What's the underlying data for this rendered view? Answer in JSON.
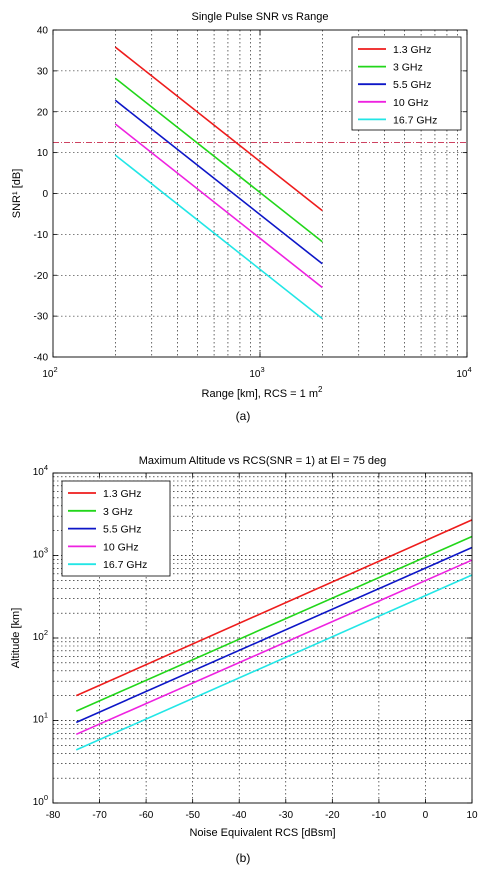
{
  "chart_data": [
    {
      "type": "line",
      "title": "Single Pulse SNR vs Range",
      "xlabel": "Range [km], RCS = 1 m",
      "xlabel_sup": "2",
      "ylabel": "SNR¹ [dB]",
      "caption": "(a)",
      "xscale": "log",
      "xlim": [
        100,
        10000
      ],
      "ylim": [
        -40,
        40
      ],
      "x_ticks": [
        100,
        1000,
        10000
      ],
      "x_tick_labels": [
        {
          "base": "10",
          "exp": "2"
        },
        {
          "base": "10",
          "exp": "3"
        },
        {
          "base": "10",
          "exp": "4"
        }
      ],
      "y_ticks": [
        -40,
        -30,
        -20,
        -10,
        0,
        10,
        20,
        30,
        40
      ],
      "y_tick_labels": [
        "-40",
        "-30",
        "-20",
        "-10",
        "0",
        "10",
        "20",
        "30",
        "40"
      ],
      "grid": true,
      "legend_position": "top-right",
      "threshold_line": {
        "y": 12.5,
        "color": "#c8284b"
      },
      "series": [
        {
          "name": "1.3 GHz",
          "color": "#ee1c1c",
          "x": [
            200,
            2000
          ],
          "y": [
            35.8,
            -4.2
          ]
        },
        {
          "name": "3 GHz",
          "color": "#22d61a",
          "x": [
            200,
            2000
          ],
          "y": [
            28.2,
            -11.8
          ]
        },
        {
          "name": "5.5 GHz",
          "color": "#0d16c7",
          "x": [
            200,
            2000
          ],
          "y": [
            22.8,
            -17.2
          ]
        },
        {
          "name": "10 GHz",
          "color": "#ee22e0",
          "x": [
            200,
            2000
          ],
          "y": [
            17.0,
            -23.0
          ]
        },
        {
          "name": "16.7 GHz",
          "color": "#22e6e6",
          "x": [
            200,
            2000
          ],
          "y": [
            9.4,
            -30.6
          ]
        }
      ]
    },
    {
      "type": "line",
      "title": "Maximum Altitude vs RCS(SNR = 1) at El = 75 deg",
      "xlabel": "Noise Equivalent RCS [dBsm]",
      "ylabel": "Altitude [km]",
      "caption": "(b)",
      "yscale": "log",
      "xlim": [
        -80,
        10
      ],
      "ylim": [
        1,
        10000
      ],
      "x_ticks": [
        -80,
        -70,
        -60,
        -50,
        -40,
        -30,
        -20,
        -10,
        0,
        10
      ],
      "x_tick_labels": [
        "-80",
        "-70",
        "-60",
        "-50",
        "-40",
        "-30",
        "-20",
        "-10",
        "0",
        "10"
      ],
      "y_ticks": [
        1,
        10,
        100,
        1000,
        10000
      ],
      "y_tick_labels": [
        {
          "base": "10",
          "exp": "0"
        },
        {
          "base": "10",
          "exp": "1"
        },
        {
          "base": "10",
          "exp": "2"
        },
        {
          "base": "10",
          "exp": "3"
        },
        {
          "base": "10",
          "exp": "4"
        }
      ],
      "grid": true,
      "legend_position": "top-left",
      "series": [
        {
          "name": "1.3 GHz",
          "color": "#ee1c1c",
          "x": [
            -75,
            10
          ],
          "y": [
            20,
            2700
          ]
        },
        {
          "name": "3 GHz",
          "color": "#22d61a",
          "x": [
            -75,
            10
          ],
          "y": [
            13,
            1700
          ]
        },
        {
          "name": "5.5 GHz",
          "color": "#0d16c7",
          "x": [
            -75,
            10
          ],
          "y": [
            9.5,
            1250
          ]
        },
        {
          "name": "10 GHz",
          "color": "#ee22e0",
          "x": [
            -75,
            10
          ],
          "y": [
            6.8,
            880
          ]
        },
        {
          "name": "16.7 GHz",
          "color": "#22e6e6",
          "x": [
            -75,
            10
          ],
          "y": [
            4.4,
            580
          ]
        }
      ]
    }
  ]
}
